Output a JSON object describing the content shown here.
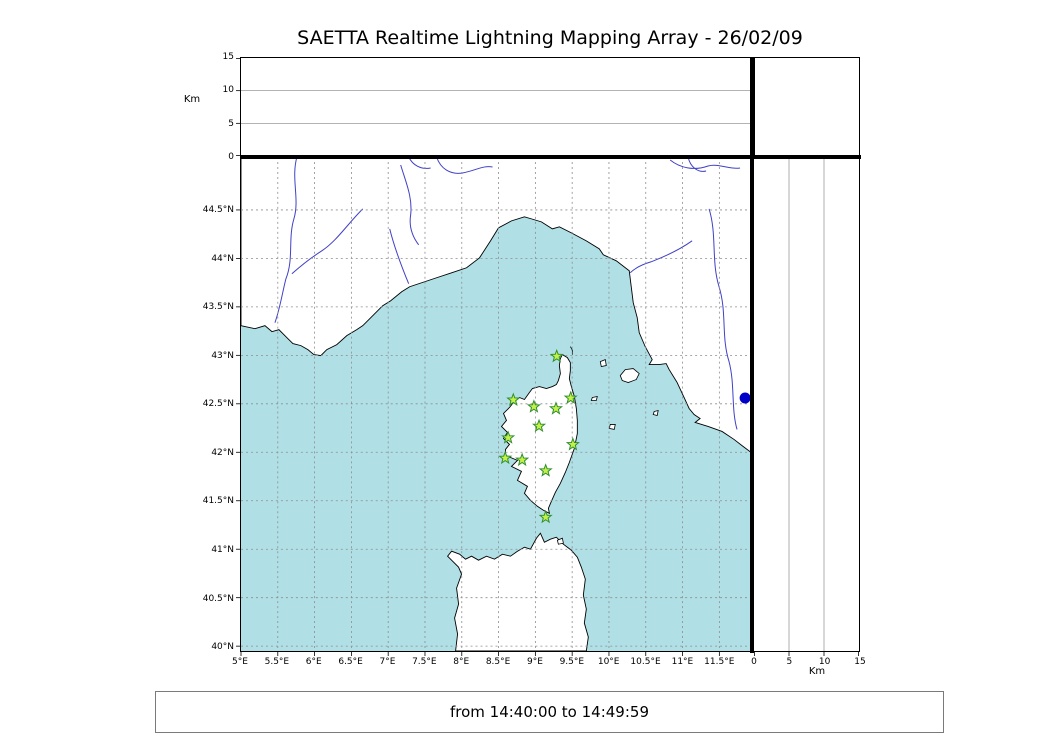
{
  "title": "SAETTA Realtime Lightning Mapping Array - 26/02/09",
  "footer": "from 14:40:00 to 14:49:59",
  "altitude_panel": {
    "axis_label": "Km",
    "tick_labels": [
      "15",
      "10",
      "5",
      "0"
    ],
    "tick_values": [
      15,
      10,
      5,
      0
    ],
    "grid_km": [
      5,
      10
    ],
    "max_km": 15
  },
  "right_panel": {
    "axis_label": "Km",
    "tick_labels": [
      "0",
      "5",
      "10",
      "15"
    ],
    "tick_values": [
      0,
      5,
      10,
      15
    ],
    "grid_km": [
      5,
      10
    ],
    "max_km": 15
  },
  "map": {
    "lat_tick_labels": [
      "44.5°N",
      "44°N",
      "43.5°N",
      "43°N",
      "42.5°N",
      "42°N",
      "41.5°N",
      "41°N",
      "40.5°N",
      "40°N"
    ],
    "lat_tick_values": [
      44.5,
      44,
      43.5,
      43,
      42.5,
      42,
      41.5,
      41,
      40.5,
      40
    ],
    "lon_tick_labels": [
      "5°E",
      "5.5°E",
      "6°E",
      "6.5°E",
      "7°E",
      "7.5°E",
      "8°E",
      "8.5°E",
      "9°E",
      "9.5°E",
      "10°E",
      "10.5°E",
      "11°E",
      "11.5°E"
    ],
    "lon_tick_values": [
      5,
      5.5,
      6,
      6.5,
      7,
      7.5,
      8,
      8.5,
      9,
      9.5,
      10,
      10.5,
      11,
      11.5
    ],
    "lon_range": [
      5.0,
      11.93
    ],
    "lat_range": [
      39.95,
      45.046
    ],
    "colors": {
      "sea": "#b0e0e6",
      "land": "#ffffff",
      "coast": "#000000",
      "river": "#4040c8",
      "grid": "#8c8c8c",
      "station_fill": "#c4f04a",
      "station_stroke": "#2f8f2f",
      "marker": "#0000c8"
    }
  },
  "stations": [
    {
      "lon": 9.29,
      "lat": 42.99
    },
    {
      "lon": 8.7,
      "lat": 42.54
    },
    {
      "lon": 8.98,
      "lat": 42.47
    },
    {
      "lon": 9.28,
      "lat": 42.45
    },
    {
      "lon": 9.48,
      "lat": 42.56
    },
    {
      "lon": 9.05,
      "lat": 42.27
    },
    {
      "lon": 8.63,
      "lat": 42.15
    },
    {
      "lon": 9.51,
      "lat": 42.08
    },
    {
      "lon": 8.59,
      "lat": 41.94
    },
    {
      "lon": 8.82,
      "lat": 41.92
    },
    {
      "lon": 9.14,
      "lat": 41.81
    },
    {
      "lon": 9.14,
      "lat": 41.33
    }
  ],
  "offline_marker": {
    "lon": 11.85,
    "lat": 42.56
  }
}
